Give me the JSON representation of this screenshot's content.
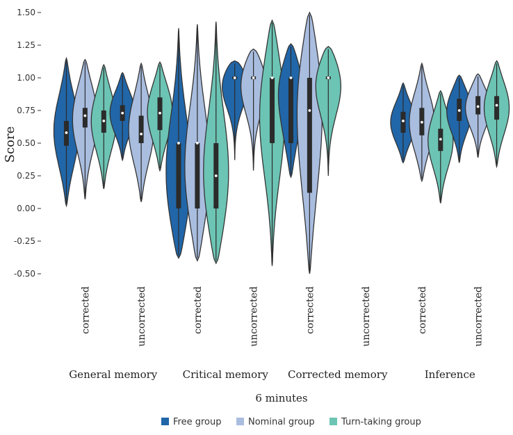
{
  "chart_data": {
    "type": "violin",
    "ylabel": "Score",
    "xlabel": "6 minutes",
    "ylim": [
      -0.5,
      1.5
    ],
    "yticks": [
      -0.5,
      -0.25,
      0.0,
      0.25,
      0.5,
      0.75,
      1.0,
      1.25,
      1.5
    ],
    "ytick_labels": [
      "-0.50",
      "-0.25",
      "0.00",
      "0.25",
      "0.50",
      "0.75",
      "1.00",
      "1.25",
      "1.50"
    ],
    "grid": false,
    "legend_position": "bottom",
    "series": [
      {
        "name": "Free group",
        "color": "#2166a8"
      },
      {
        "name": "Nominal group",
        "color": "#a9bddf"
      },
      {
        "name": "Turn-taking group",
        "color": "#6cc4b4"
      }
    ],
    "groups": [
      {
        "label": "General memory",
        "subgroups": [
          {
            "label": "corrected",
            "violins": [
              {
                "median": 0.58,
                "q1": 0.48,
                "q3": 0.67,
                "min": 0.02,
                "max": 1.15,
                "mode": 0.62
              },
              {
                "median": 0.71,
                "q1": 0.62,
                "q3": 0.77,
                "min": 0.07,
                "max": 1.14,
                "mode": 0.72
              },
              {
                "median": 0.67,
                "q1": 0.58,
                "q3": 0.75,
                "min": 0.15,
                "max": 1.1,
                "mode": 0.7
              }
            ]
          },
          {
            "label": "uncorrected",
            "violins": [
              {
                "median": 0.73,
                "q1": 0.67,
                "q3": 0.79,
                "min": 0.37,
                "max": 1.04,
                "mode": 0.75
              },
              {
                "median": 0.57,
                "q1": 0.5,
                "q3": 0.71,
                "min": 0.05,
                "max": 1.11,
                "mode": 0.62
              },
              {
                "median": 0.73,
                "q1": 0.6,
                "q3": 0.85,
                "min": 0.29,
                "max": 1.12,
                "mode": 0.76
              }
            ]
          }
        ]
      },
      {
        "label": "Critical memory",
        "subgroups": [
          {
            "label": "corrected",
            "violins": [
              {
                "median": 0.5,
                "q1": 0.0,
                "q3": 0.5,
                "min": -0.38,
                "max": 1.38,
                "mode": 0.15
              },
              {
                "median": 0.5,
                "q1": 0.0,
                "q3": 0.5,
                "min": -0.4,
                "max": 1.41,
                "mode": 0.25
              },
              {
                "median": 0.25,
                "q1": 0.0,
                "q3": 0.5,
                "min": -0.42,
                "max": 1.43,
                "mode": 0.15
              }
            ]
          },
          {
            "label": "uncorrected",
            "violins": [
              {
                "median": 1.0,
                "q1": 1.0,
                "q3": 1.0,
                "min": 0.37,
                "max": 1.13,
                "mode": 1.0
              },
              {
                "median": 1.0,
                "q1": 1.0,
                "q3": 1.0,
                "min": 0.29,
                "max": 1.22,
                "mode": 1.0
              },
              {
                "median": 1.0,
                "q1": 0.5,
                "q3": 1.0,
                "min": -0.44,
                "max": 1.44,
                "mode": 0.8
              }
            ]
          }
        ]
      },
      {
        "label": "Corrected memory",
        "subgroups": [
          {
            "label": "corrected",
            "violins": [
              {
                "median": 1.0,
                "q1": 0.5,
                "q3": 1.0,
                "min": 0.24,
                "max": 1.26,
                "mode": 0.95
              },
              {
                "median": 0.75,
                "q1": 0.12,
                "q3": 1.0,
                "min": -0.5,
                "max": 1.5,
                "mode": 0.9
              },
              {
                "median": 1.0,
                "q1": 1.0,
                "q3": 1.0,
                "min": 0.25,
                "max": 1.24,
                "mode": 1.0
              }
            ]
          },
          {
            "label": "uncorrected",
            "violins": []
          }
        ]
      },
      {
        "label": "Inference",
        "subgroups": [
          {
            "label": "corrected",
            "violins": [
              {
                "median": 0.67,
                "q1": 0.58,
                "q3": 0.74,
                "min": 0.35,
                "max": 0.96,
                "mode": 0.66
              },
              {
                "median": 0.66,
                "q1": 0.56,
                "q3": 0.77,
                "min": 0.21,
                "max": 1.11,
                "mode": 0.66
              },
              {
                "median": 0.53,
                "q1": 0.44,
                "q3": 0.61,
                "min": 0.04,
                "max": 0.9,
                "mode": 0.55
              }
            ]
          },
          {
            "label": "uncorrected",
            "violins": [
              {
                "median": 0.75,
                "q1": 0.67,
                "q3": 0.84,
                "min": 0.35,
                "max": 1.02,
                "mode": 0.77
              },
              {
                "median": 0.78,
                "q1": 0.72,
                "q3": 0.86,
                "min": 0.39,
                "max": 1.03,
                "mode": 0.79
              },
              {
                "median": 0.79,
                "q1": 0.68,
                "q3": 0.86,
                "min": 0.32,
                "max": 1.13,
                "mode": 0.8
              }
            ]
          }
        ]
      }
    ]
  }
}
